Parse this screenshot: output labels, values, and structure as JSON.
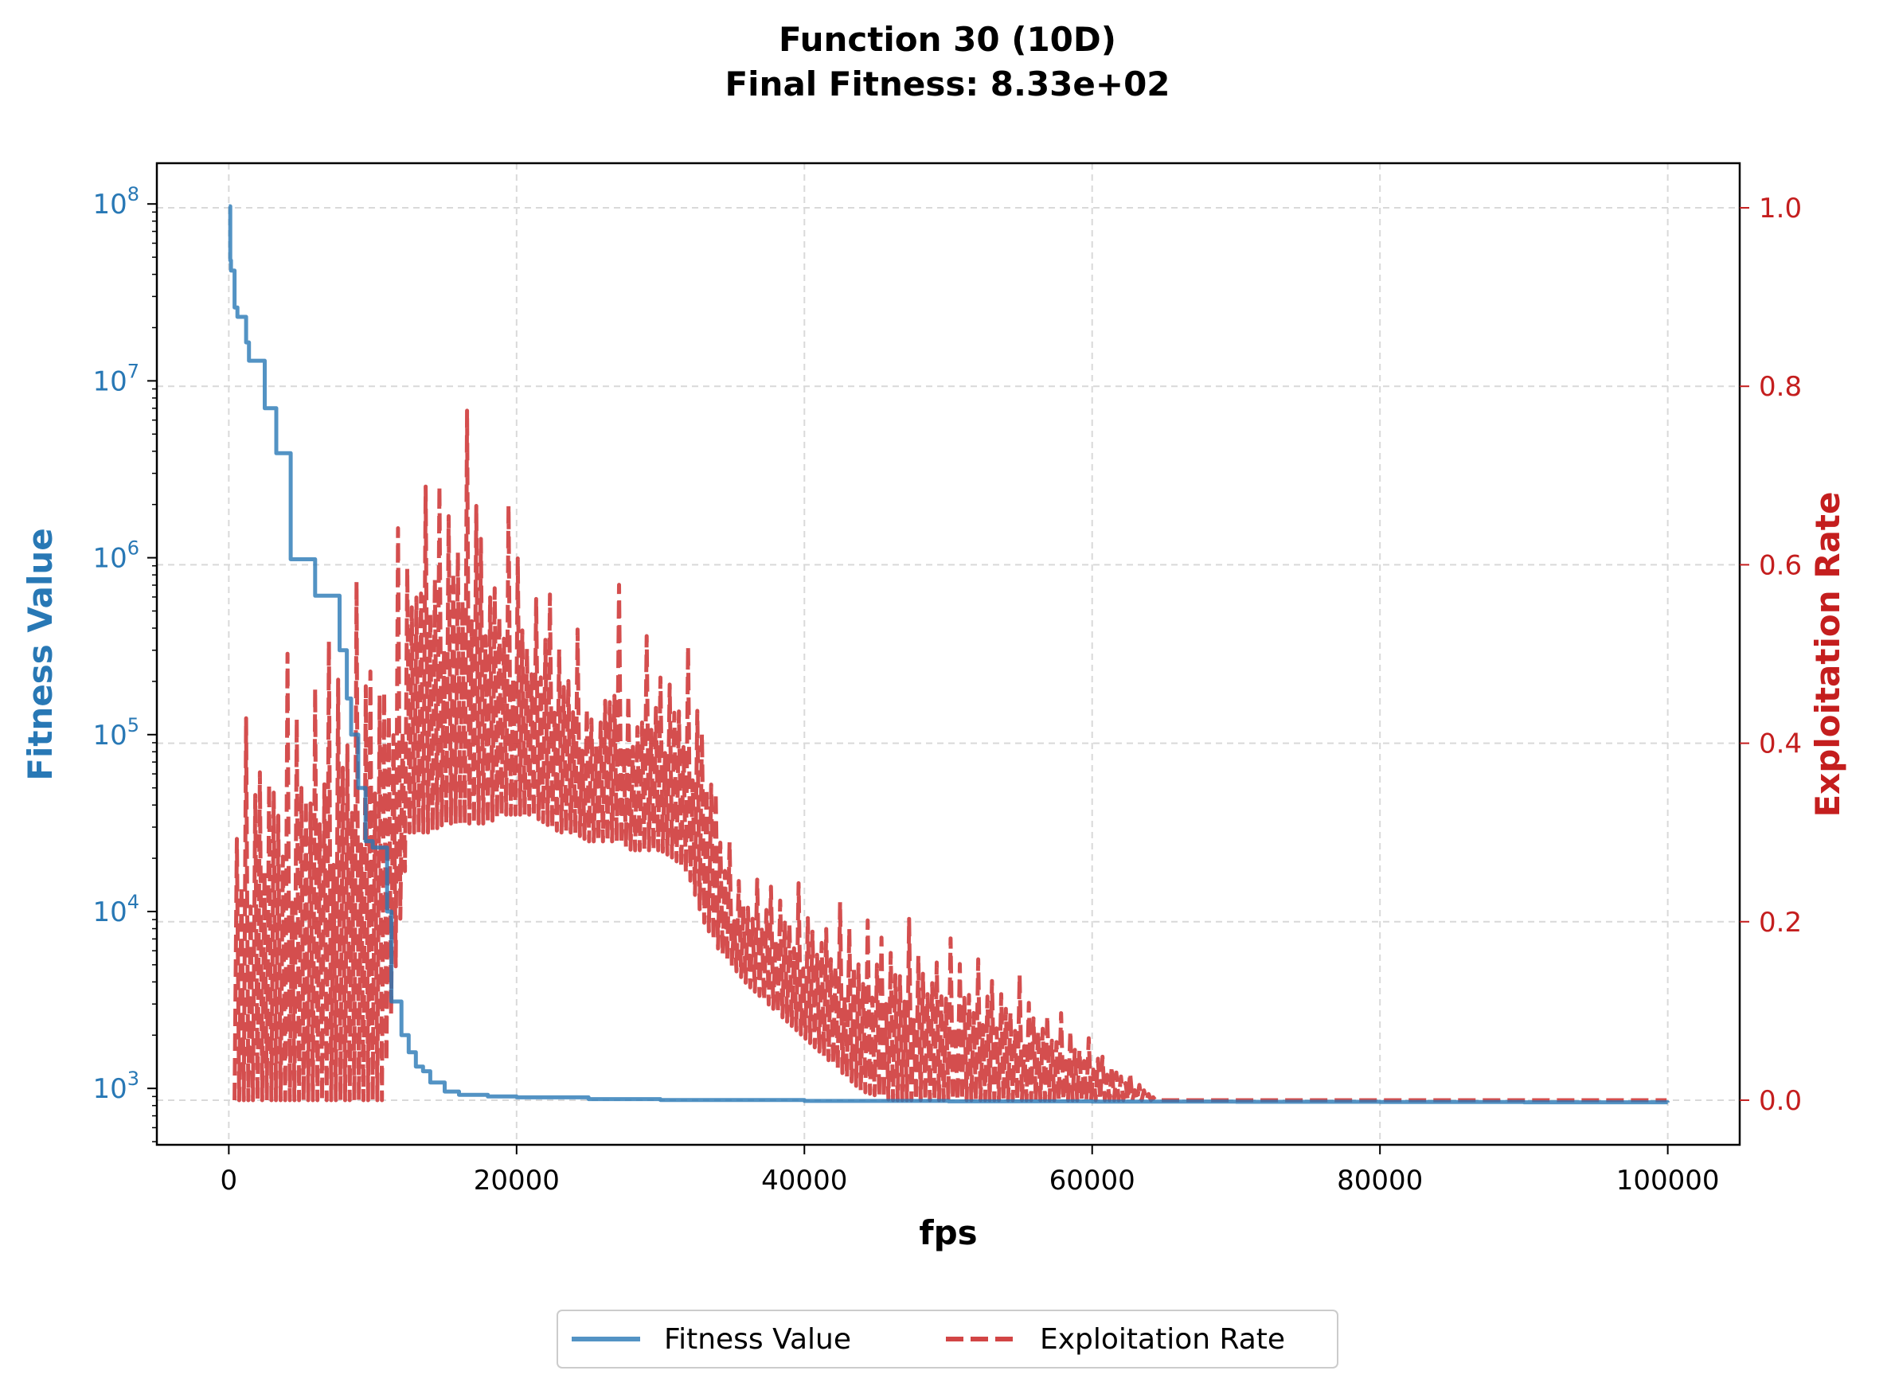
{
  "chart_data": {
    "type": "line",
    "title": "Function 30 (10D)",
    "subtitle": "Final Fitness: 8.33e+02",
    "xlabel": "fps",
    "ylabel_left": "Fitness Value",
    "ylabel_right": "Exploitation Rate",
    "xlim": [
      -5000,
      105000
    ],
    "ylim_left": [
      480,
      170000000
    ],
    "ylim_right": [
      -0.05,
      1.05
    ],
    "yscale_left": "log",
    "x_ticks": [
      0,
      20000,
      40000,
      60000,
      80000,
      100000
    ],
    "x_tick_labels": [
      "0",
      "20000",
      "40000",
      "60000",
      "80000",
      "100000"
    ],
    "y_left_ticks": [
      1000,
      10000,
      100000,
      1000000,
      10000000,
      100000000
    ],
    "y_left_tick_exponents": [
      "3",
      "4",
      "5",
      "6",
      "7",
      "8"
    ],
    "y_left_tick_base": "10",
    "y_right_ticks": [
      0,
      0.2,
      0.4,
      0.6,
      0.8,
      1.0
    ],
    "y_right_tick_labels": [
      "0.0",
      "0.2",
      "0.4",
      "0.6",
      "0.8",
      "1.0"
    ],
    "grid": true,
    "legend_position": "bottom-center",
    "colors": {
      "fitness": "#2878b5",
      "exploitation": "#d24545",
      "left_axis": "#2878b5",
      "right_axis": "#c41e1e"
    },
    "series": [
      {
        "name": "Fitness Value",
        "axis": "left",
        "style": "solid",
        "x": [
          0,
          100,
          150,
          300,
          400,
          500,
          600,
          1000,
          1200,
          1400,
          2000,
          2200,
          2500,
          2700,
          3000,
          3300,
          3700,
          4000,
          4300,
          5000,
          5500,
          6000,
          7000,
          7500,
          7700,
          8000,
          8200,
          8500,
          9000,
          9500,
          10000,
          10500,
          11000,
          11300,
          11500,
          11700,
          12000,
          12500,
          13000,
          13500,
          14000,
          15000,
          16000,
          18000,
          20000,
          25000,
          30000,
          40000,
          50000,
          60000,
          70000,
          80000,
          90000,
          100000
        ],
        "y": [
          97000000,
          48000000,
          42000000,
          42000000,
          26000000,
          26000000,
          23000000,
          23000000,
          16500000,
          13000000,
          13000000,
          13000000,
          7000000,
          7000000,
          7000000,
          3900000,
          3900000,
          3900000,
          980000,
          980000,
          980000,
          610000,
          610000,
          610000,
          300000,
          300000,
          160000,
          100000,
          50000,
          25000,
          23000,
          23000,
          10000,
          3100,
          3100,
          3100,
          2000,
          1600,
          1330,
          1250,
          1080,
          960,
          920,
          900,
          890,
          870,
          860,
          850,
          845,
          842,
          840,
          838,
          835,
          833
        ]
      },
      {
        "name": "Exploitation Rate",
        "axis": "right",
        "style": "dashed",
        "x": [
          0,
          10000,
          10700,
          12500,
          13500,
          14000,
          15000,
          16000,
          17000,
          18000,
          19000,
          20000,
          21000,
          22000,
          23000,
          24000,
          25000,
          26000,
          27000,
          28000,
          29000,
          30000,
          31000,
          32000,
          33000,
          34000,
          35000,
          36000,
          38000,
          40000,
          42000,
          44000,
          46000,
          48000,
          50000,
          52000,
          54000,
          56000,
          58000,
          60000,
          62000,
          64000,
          64500,
          70000,
          80000,
          90000,
          100000
        ],
        "y_low": [
          0,
          0,
          0,
          0.3,
          0.3,
          0.3,
          0.31,
          0.31,
          0.31,
          0.31,
          0.32,
          0.32,
          0.32,
          0.31,
          0.3,
          0.3,
          0.29,
          0.29,
          0.29,
          0.28,
          0.28,
          0.28,
          0.27,
          0.25,
          0.2,
          0.17,
          0.15,
          0.13,
          0.1,
          0.07,
          0.04,
          0.01,
          0,
          0,
          0,
          0,
          0,
          0,
          0,
          0,
          0,
          0,
          0,
          0,
          0,
          0,
          0
        ],
        "y_high": [
          0.42,
          0.62,
          0.62,
          0.66,
          0.75,
          0.74,
          0.72,
          0.76,
          0.8,
          0.66,
          0.67,
          0.67,
          0.58,
          0.62,
          0.55,
          0.55,
          0.47,
          0.48,
          0.6,
          0.45,
          0.55,
          0.5,
          0.52,
          0.51,
          0.48,
          0.38,
          0.27,
          0.26,
          0.26,
          0.24,
          0.23,
          0.22,
          0.21,
          0.2,
          0.19,
          0.17,
          0.15,
          0.13,
          0.1,
          0.07,
          0.04,
          0.01,
          0,
          0,
          0,
          0,
          0
        ]
      }
    ]
  }
}
